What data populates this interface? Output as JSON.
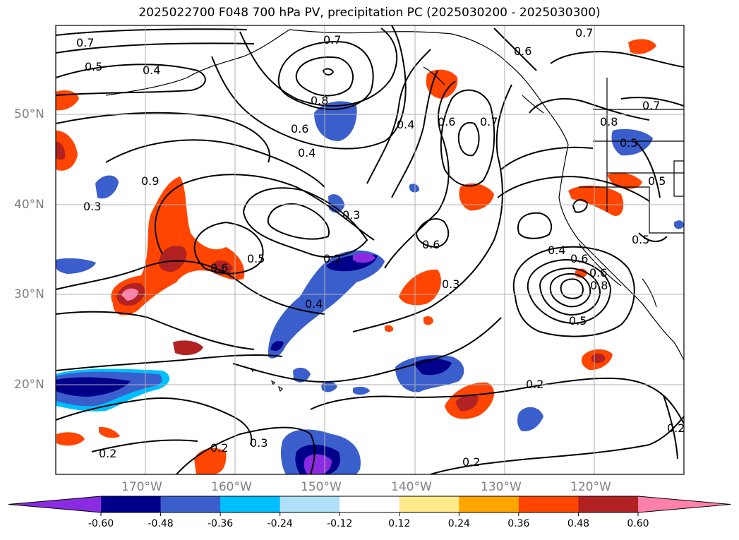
{
  "title": "2025022700 F048 700 hPa PV, precipitation PC (2025030200 - 2025030300)",
  "gridlines": {
    "lon_labels": [
      "170°W",
      "160°W",
      "150°W",
      "140°W",
      "130°W",
      "120°W"
    ],
    "lat_labels": [
      "50°N",
      "40°N",
      "30°N",
      "20°N"
    ]
  },
  "contour_labels": [
    "0.7",
    "0.5",
    "0.4",
    "0.7",
    "0.8",
    "0.6",
    "0.4",
    "0.6",
    "0.7",
    "0.6",
    "0.7",
    "0.6",
    "0.4",
    "0.9",
    "0.3",
    "0.3",
    "0.5",
    "0.6",
    "0.2",
    "0.4",
    "0.3",
    "0.6",
    "0.4",
    "0.6",
    "0.5",
    "0.8",
    "0.5",
    "0.2",
    "0.2",
    "0.3",
    "0.2",
    "0.2",
    "0.2",
    "0.8",
    "0.5",
    "0.5",
    "0.7"
  ],
  "colorbar": {
    "colors": [
      "#8a2be2",
      "#00008b",
      "#3a5fcd",
      "#00bfff",
      "#b0e0f8",
      "#ffffff",
      "#ffe98a",
      "#ffa500",
      "#ff4500",
      "#b22222",
      "#ff80aa"
    ],
    "ticks": [
      "-0.60",
      "-0.48",
      "-0.36",
      "-0.24",
      "-0.12",
      "0.12",
      "0.24",
      "0.36",
      "0.48",
      "0.60"
    ]
  }
}
